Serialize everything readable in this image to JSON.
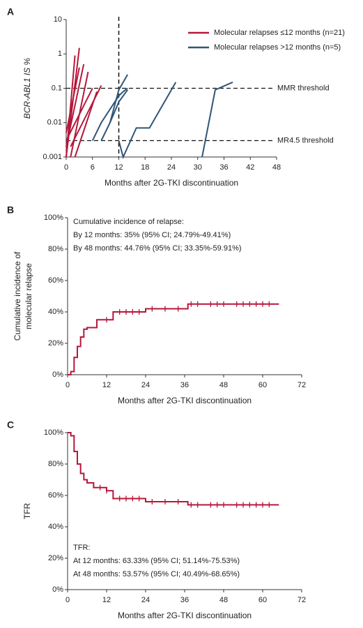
{
  "chart_data": [
    {
      "type": "line",
      "panel": "A",
      "ylabel": "BCR-ABL1 IS %",
      "xlabel": "Months after 2G-TKI discontinuation",
      "log_y": true,
      "xlim": [
        0,
        48
      ],
      "xticks": [
        0,
        6,
        12,
        18,
        24,
        30,
        36,
        42,
        48
      ],
      "ylim": [
        0.001,
        10
      ],
      "yticks": [
        0.001,
        0.01,
        0.1,
        1,
        10
      ],
      "legend": "top-right",
      "vline": 12,
      "thresholds": [
        {
          "label": "MMR threshold",
          "value": 0.1
        },
        {
          "label": "MR4.5 threshold",
          "value": 0.003
        }
      ],
      "series": [
        {
          "name": "Molecular relapses ≤12 months (n=21)",
          "color": "#b5173a",
          "lines": [
            {
              "x": [
                0,
                3
              ],
              "values": [
                0.001,
                1.5
              ]
            },
            {
              "x": [
                0,
                2
              ],
              "values": [
                0.001,
                0.9
              ]
            },
            {
              "x": [
                0,
                4
              ],
              "values": [
                0.002,
                0.5
              ]
            },
            {
              "x": [
                1,
                5
              ],
              "values": [
                0.001,
                0.3
              ]
            },
            {
              "x": [
                0,
                6
              ],
              "values": [
                0.003,
                0.1
              ]
            },
            {
              "x": [
                1,
                8
              ],
              "values": [
                0.002,
                0.12
              ]
            },
            {
              "x": [
                2,
                7
              ],
              "values": [
                0.001,
                0.08
              ]
            },
            {
              "x": [
                0,
                3
              ],
              "values": [
                0.005,
                0.4
              ]
            }
          ]
        },
        {
          "name": "Molecular relapses >12 months (n=5)",
          "color": "#2f5577",
          "lines": [
            {
              "x": [
                6,
                8,
                12,
                13,
                14
              ],
              "values": [
                0.003,
                0.01,
                0.06,
                0.08,
                0.1
              ]
            },
            {
              "x": [
                8,
                10,
                12,
                14
              ],
              "values": [
                0.003,
                0.01,
                0.09,
                0.25
              ]
            },
            {
              "x": [
                12,
                13,
                16,
                19,
                25
              ],
              "values": [
                0.003,
                0.001,
                0.007,
                0.007,
                0.15
              ]
            },
            {
              "x": [
                10,
                12,
                14
              ],
              "values": [
                0.01,
                0.04,
                0.09
              ]
            },
            {
              "x": [
                31,
                34,
                38
              ],
              "values": [
                0.001,
                0.09,
                0.15
              ]
            }
          ]
        }
      ]
    },
    {
      "type": "step",
      "panel": "B",
      "ylabel": [
        "Cumulative incidence of",
        "molecular relapse"
      ],
      "xlabel": "Months after 2G-TKI discontinuation",
      "xlim": [
        0,
        72
      ],
      "xticks": [
        0,
        12,
        24,
        36,
        48,
        60,
        72
      ],
      "ylim": [
        0,
        100
      ],
      "yticks": [
        {
          "value": 0,
          "label": "0%"
        },
        {
          "value": 20,
          "label": "20%"
        },
        {
          "value": 40,
          "label": "40%"
        },
        {
          "value": 60,
          "label": "60%"
        },
        {
          "value": 80,
          "label": "80%"
        },
        {
          "value": 100,
          "label": "100%"
        }
      ],
      "annotations": [
        "Cumulative incidence of relapse:",
        "By 12 months: 35% (95% CI; 24.79%-49.41%)",
        "By 48 months: 44.76% (95% CI; 33.35%-59.91%)"
      ],
      "color": "#b5173a",
      "x": [
        0,
        1,
        2,
        3,
        4,
        5,
        6,
        9,
        12,
        14,
        24,
        37,
        65
      ],
      "values": [
        0,
        2,
        11,
        18,
        24,
        29,
        30,
        35,
        35,
        40,
        42,
        45,
        45
      ],
      "censored": [
        12,
        16,
        18,
        20,
        22,
        26,
        30,
        34,
        38,
        40,
        44,
        46,
        48,
        52,
        54,
        56,
        58,
        60,
        62
      ]
    },
    {
      "type": "step",
      "panel": "C",
      "ylabel": [
        "TFR"
      ],
      "xlabel": "Months after 2G-TKI discontinuation",
      "xlim": [
        0,
        72
      ],
      "xticks": [
        0,
        12,
        24,
        36,
        48,
        60,
        72
      ],
      "ylim": [
        0,
        100
      ],
      "yticks": [
        {
          "value": 0,
          "label": "0%"
        },
        {
          "value": 20,
          "label": "20%"
        },
        {
          "value": 40,
          "label": "40%"
        },
        {
          "value": 60,
          "label": "60%"
        },
        {
          "value": 80,
          "label": "80%"
        },
        {
          "value": 100,
          "label": "100%"
        }
      ],
      "annotations": [
        "TFR:",
        "At 12 months: 63.33% (95% CI; 51.14%-75.53%)",
        "At 48 months: 53.57% (95% CI; 40.49%-68.65%)"
      ],
      "color": "#b5173a",
      "x": [
        0,
        1,
        2,
        3,
        4,
        5,
        6,
        8,
        12,
        14,
        24,
        37,
        65
      ],
      "values": [
        100,
        98,
        88,
        80,
        74,
        70,
        68,
        65,
        63,
        58,
        56,
        54,
        54
      ],
      "censored": [
        10,
        12,
        16,
        18,
        20,
        22,
        26,
        30,
        34,
        38,
        40,
        44,
        46,
        48,
        52,
        54,
        56,
        58,
        60,
        62
      ]
    }
  ]
}
